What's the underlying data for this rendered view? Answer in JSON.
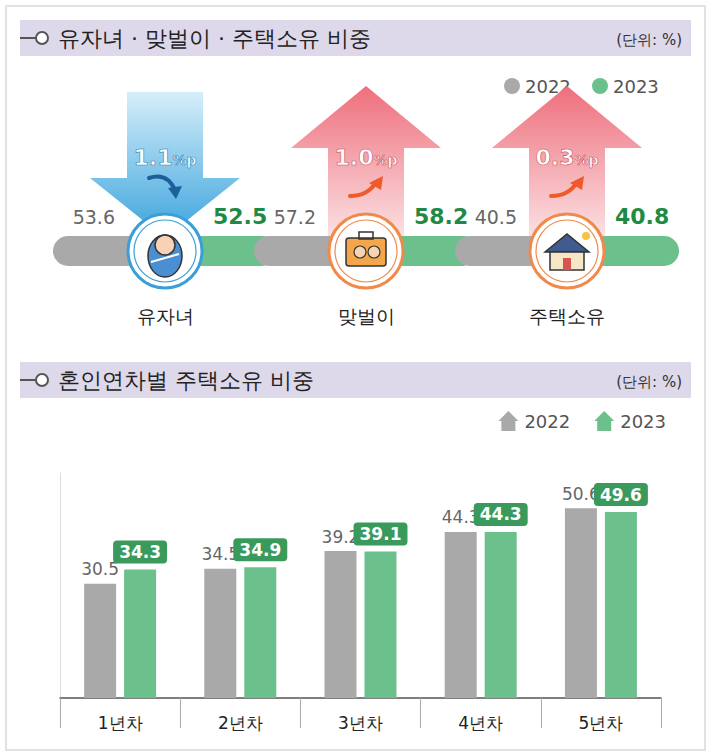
{
  "indicators": {
    "title": "유자녀 · 맞벌이 · 주택소유 비중",
    "unit": "(단위: %)",
    "series": [
      {
        "name": "2022",
        "color": "#a9a9a9"
      },
      {
        "name": "2023",
        "color": "#6cc08b"
      }
    ],
    "items": [
      {
        "label": "유자녀",
        "v2022": 53.6,
        "v2023": 52.5,
        "change": 1.1,
        "change_label": "1.1%p",
        "direction": "down"
      },
      {
        "label": "맞벌이",
        "v2022": 57.2,
        "v2023": 58.2,
        "change": 1.0,
        "change_label": "1.0%p",
        "direction": "up"
      },
      {
        "label": "주택소유",
        "v2022": 40.5,
        "v2023": 40.8,
        "change": 0.3,
        "change_label": "0.3%p",
        "direction": "up"
      }
    ]
  },
  "chart_data": {
    "type": "bar",
    "title": "혼인연차별 주택소유 비중",
    "subtitle": "(단위: %)",
    "categories": [
      "1년차",
      "2년차",
      "3년차",
      "4년차",
      "5년차"
    ],
    "series": [
      {
        "name": "2022",
        "color": "#a9a9a9",
        "values": [
          30.5,
          34.5,
          39.2,
          44.3,
          50.6
        ]
      },
      {
        "name": "2023",
        "color": "#6cc08b",
        "values": [
          34.3,
          34.9,
          39.1,
          44.3,
          49.6
        ]
      }
    ],
    "ylim": [
      0,
      60
    ],
    "data_labels": true,
    "tick_labels": "x",
    "legend": "top-right",
    "grid": false
  }
}
